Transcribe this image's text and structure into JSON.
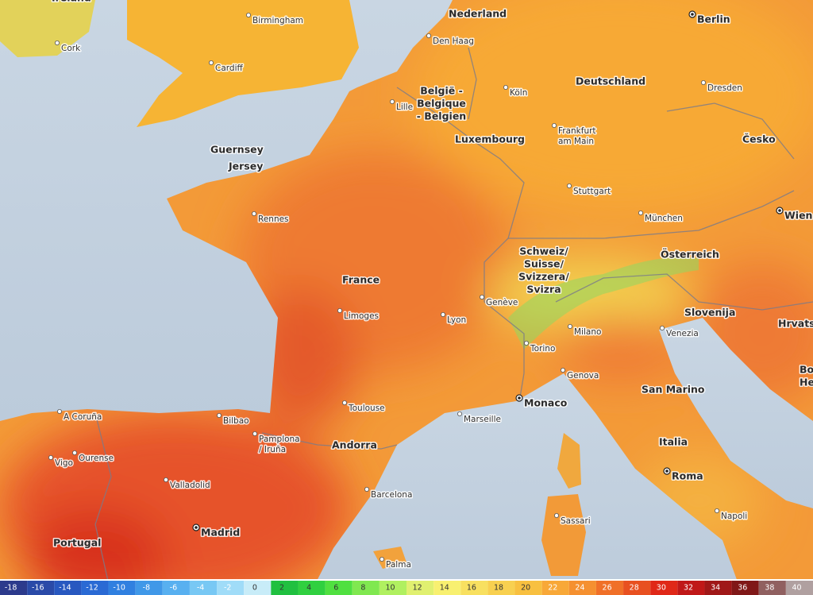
{
  "countries": [
    [
      "Ireland"
    ],
    [
      "Nederland"
    ],
    [
      "Deutschland"
    ],
    [
      "België -",
      "Belgique",
      "- Belgien"
    ],
    [
      "Luxembourg"
    ],
    [
      "Česko"
    ],
    [
      "Guernsey"
    ],
    [
      "Jersey"
    ],
    [
      "France"
    ],
    [
      "Schweiz/",
      "Suisse/",
      "Svizzera/",
      "Svizra"
    ],
    [
      "Österreich"
    ],
    [
      "Slovenija"
    ],
    [
      "Hrvatska"
    ],
    [
      "San Marino"
    ],
    [
      "Bosna i",
      "Hercegovina"
    ],
    [
      "Andorra"
    ],
    [
      "Italia"
    ],
    [
      "Portugal"
    ]
  ],
  "capitals": [
    [
      "Berlin"
    ],
    [
      "Wien"
    ],
    [
      "Monaco"
    ],
    [
      "Madrid"
    ],
    [
      "Roma"
    ]
  ],
  "cities": [
    [
      "Birmingham"
    ],
    [
      "Cork"
    ],
    [
      "Cardiff"
    ],
    [
      "Den Haag"
    ],
    [
      "Köln"
    ],
    [
      "Dresden"
    ],
    [
      "Lille"
    ],
    [
      "Frankfurt",
      "am Main"
    ],
    [
      "Rennes"
    ],
    [
      "Stuttgart"
    ],
    [
      "München"
    ],
    [
      "Genève"
    ],
    [
      "Lyon"
    ],
    [
      "Limoges"
    ],
    [
      "Venezia"
    ],
    [
      "Milano"
    ],
    [
      "Torino"
    ],
    [
      "Genova"
    ],
    [
      "Toulouse"
    ],
    [
      "Marseille"
    ],
    [
      "A Coruña"
    ],
    [
      "Bilbao"
    ],
    [
      "Pamplona",
      "/ Iruña"
    ],
    [
      "Ourense"
    ],
    [
      "Vigo"
    ],
    [
      "Valladolid"
    ],
    [
      "Barcelona"
    ],
    [
      "Sassari"
    ],
    [
      "Napoli"
    ],
    [
      "Palma"
    ]
  ],
  "legend": {
    "ticks": [
      -18,
      -16,
      -14,
      -12,
      -10,
      -8,
      -6,
      -4,
      -2,
      0,
      2,
      4,
      6,
      8,
      10,
      12,
      14,
      16,
      18,
      20,
      22,
      24,
      26,
      28,
      30,
      32,
      34,
      36,
      38,
      40
    ],
    "colors": [
      "#2c3a8c",
      "#2a4aa8",
      "#2858c0",
      "#2a6ad4",
      "#3080e0",
      "#4098e8",
      "#58b0f0",
      "#78c8f4",
      "#a0dcf8",
      "#c8ecf8",
      "#20c040",
      "#30d040",
      "#50e040",
      "#80e850",
      "#b0f060",
      "#e0f070",
      "#f8f070",
      "#f8e060",
      "#f8d050",
      "#f8c040",
      "#f8a838",
      "#f59030",
      "#f07028",
      "#e85020",
      "#e02818",
      "#c01818",
      "#a01818",
      "#801818",
      "#906060",
      "#b0a0a0"
    ]
  }
}
